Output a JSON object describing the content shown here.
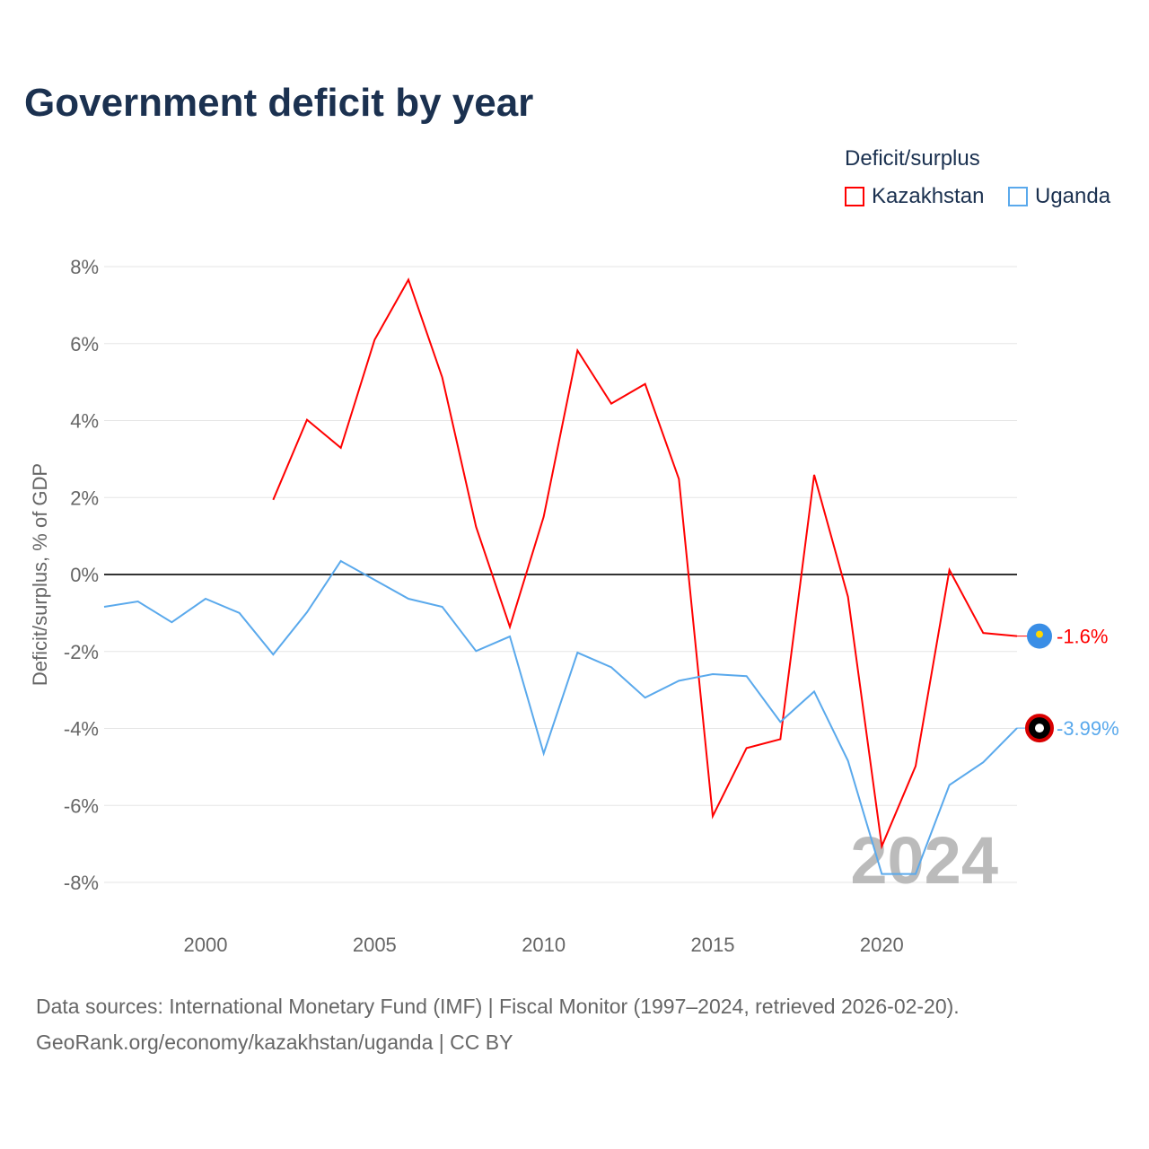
{
  "title": "Government deficit by year",
  "legend": {
    "title": "Deficit/surplus"
  },
  "footer": {
    "line1": "Data sources: International Monetary Fund (IMF) | Fiscal Monitor (1997–2024, retrieved 2026-02-20).",
    "line2": "GeoRank.org/economy/kazakhstan/uganda | CC BY"
  },
  "chart_data": {
    "type": "line",
    "title": "Government deficit by year",
    "xlabel": "",
    "ylabel": "Deficit/surplus, % of GDP",
    "xlim": [
      1997,
      2024
    ],
    "ylim": [
      -8,
      8
    ],
    "yticks": [
      8,
      6,
      4,
      2,
      0,
      -2,
      -4,
      -6,
      -8
    ],
    "ytick_labels": [
      "8%",
      "6%",
      "4%",
      "2%",
      "0%",
      "-2%",
      "-4%",
      "-6%",
      "-8%"
    ],
    "xticks": [
      2000,
      2005,
      2010,
      2015,
      2020
    ],
    "xtick_labels": [
      "2000",
      "2005",
      "2010",
      "2015",
      "2020"
    ],
    "watermark_year": "2024",
    "legend_placement": "top-right",
    "series": [
      {
        "name": "Kazakhstan",
        "color": "#ff0000",
        "end_label": "-1.6%",
        "flag_color": "#3a8ee6",
        "x": [
          2002,
          2003,
          2004,
          2005,
          2006,
          2007,
          2008,
          2009,
          2010,
          2011,
          2012,
          2013,
          2014,
          2015,
          2016,
          2017,
          2018,
          2019,
          2020,
          2021,
          2022,
          2023,
          2024
        ],
        "values": [
          1.94,
          4.02,
          3.29,
          6.1,
          7.66,
          5.12,
          1.24,
          -1.36,
          1.5,
          5.82,
          4.44,
          4.95,
          2.48,
          -6.28,
          -4.51,
          -4.28,
          2.59,
          -0.58,
          -7.06,
          -4.98,
          0.12,
          -1.52,
          -1.6
        ]
      },
      {
        "name": "Uganda",
        "color": "#5aa9ec",
        "end_label": "-3.99%",
        "flag_color": "#000000",
        "x": [
          1997,
          1998,
          1999,
          2000,
          2001,
          2002,
          2003,
          2004,
          2005,
          2006,
          2007,
          2008,
          2009,
          2010,
          2011,
          2012,
          2013,
          2014,
          2015,
          2016,
          2017,
          2018,
          2019,
          2020,
          2021,
          2022,
          2023,
          2024
        ],
        "values": [
          -0.84,
          -0.7,
          -1.24,
          -0.63,
          -1.0,
          -2.08,
          -0.98,
          0.35,
          -0.14,
          -0.63,
          -0.84,
          -1.99,
          -1.61,
          -4.65,
          -2.03,
          -2.41,
          -3.2,
          -2.76,
          -2.59,
          -2.64,
          -3.83,
          -3.04,
          -4.84,
          -7.78,
          -7.78,
          -5.47,
          -4.88,
          -3.99
        ]
      }
    ]
  }
}
